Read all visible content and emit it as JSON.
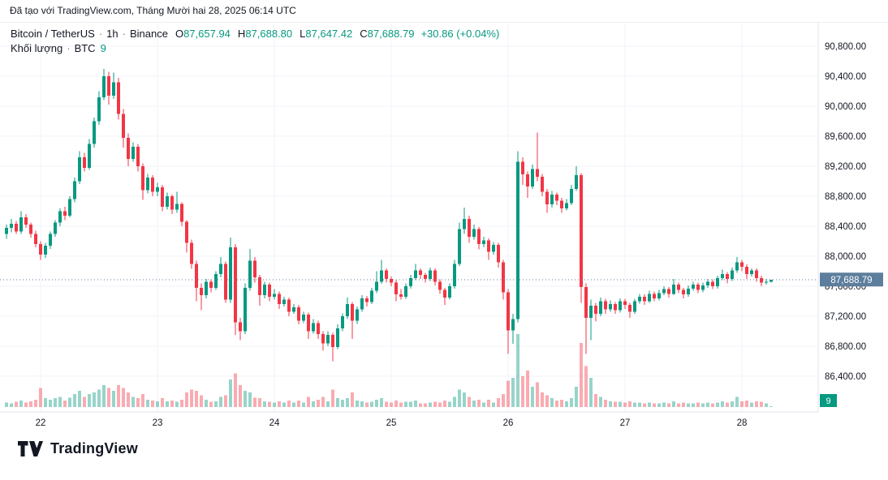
{
  "attribution": "Đã tạo với TradingView.com, Tháng Mười hai 28, 2025 06:14 UTC",
  "legend": {
    "symbol": "Bitcoin / TetherUS",
    "interval": "1h",
    "exchange": "Binance",
    "sep": "·",
    "ohlc": [
      {
        "k": "O",
        "v": "87,657.94"
      },
      {
        "k": "H",
        "v": "87,688.80"
      },
      {
        "k": "L",
        "v": "87,647.42"
      },
      {
        "k": "C",
        "v": "87,688.79"
      }
    ],
    "change": "+30.86 (+0.04%)",
    "volume_label": "Khối lượng",
    "volume_currency": "BTC",
    "volume_value": "9"
  },
  "price_axis": {
    "last_price_label": "87,688.79",
    "volume_badge": "9"
  },
  "footer": {
    "brand": "TradingView"
  },
  "colors": {
    "up": "#089981",
    "down": "#F23645",
    "grid": "#F0F3FA",
    "axis_line": "#E0E3EB",
    "axis_text": "#131722",
    "text": "#131722",
    "price_line": "#5D7E9C",
    "price_label_bg": "#5D7E9C",
    "volume_label_bg": "#089981",
    "background": "#FFFFFF"
  },
  "chart_data": {
    "type": "candlestick",
    "title": "Bitcoin / TetherUS · 1h · Binance",
    "interval": "1h",
    "exchange": "Binance",
    "last_price": 87688.79,
    "last_candle": {
      "open": 87657.94,
      "high": 87688.8,
      "low": 87647.42,
      "close": 87688.79,
      "change": 30.86,
      "change_pct": 0.04,
      "volume_btc": 9
    },
    "y_ticks": [
      {
        "value": 90800,
        "label": "90,800.00"
      },
      {
        "value": 90400,
        "label": "90,400.00"
      },
      {
        "value": 90000,
        "label": "90,000.00"
      },
      {
        "value": 89600,
        "label": "89,600.00"
      },
      {
        "value": 89200,
        "label": "89,200.00"
      },
      {
        "value": 88800,
        "label": "88,800.00"
      },
      {
        "value": 88400,
        "label": "88,400.00"
      },
      {
        "value": 88000,
        "label": "88,000.00"
      },
      {
        "value": 87600,
        "label": "87,600.00"
      },
      {
        "value": 87200,
        "label": "87,200.00"
      },
      {
        "value": 86800,
        "label": "86,800.00"
      },
      {
        "value": 86400,
        "label": "86,400.00"
      }
    ],
    "day_ticks": [
      {
        "index": 7,
        "label": "22"
      },
      {
        "index": 31,
        "label": "23"
      },
      {
        "index": 55,
        "label": "24"
      },
      {
        "index": 79,
        "label": "25"
      },
      {
        "index": 103,
        "label": "26"
      },
      {
        "index": 127,
        "label": "27"
      },
      {
        "index": 151,
        "label": "28"
      }
    ],
    "volume_unit": "relative (max spike = 100)",
    "candles_format": [
      "open",
      "high",
      "low",
      "close",
      "volume_rel"
    ],
    "candles": [
      [
        88300,
        88420,
        88230,
        88380,
        6
      ],
      [
        88380,
        88500,
        88320,
        88430,
        5
      ],
      [
        88430,
        88470,
        88300,
        88330,
        7
      ],
      [
        88330,
        88600,
        88300,
        88520,
        9
      ],
      [
        88520,
        88560,
        88380,
        88420,
        6
      ],
      [
        88420,
        88450,
        88250,
        88300,
        8
      ],
      [
        88300,
        88340,
        88120,
        88160,
        10
      ],
      [
        88160,
        88200,
        87950,
        88020,
        26
      ],
      [
        88020,
        88180,
        87980,
        88140,
        12
      ],
      [
        88140,
        88330,
        88100,
        88300,
        10
      ],
      [
        88300,
        88480,
        88260,
        88450,
        12
      ],
      [
        88450,
        88640,
        88400,
        88600,
        14
      ],
      [
        88600,
        88660,
        88480,
        88540,
        9
      ],
      [
        88540,
        88800,
        88520,
        88760,
        13
      ],
      [
        88760,
        89050,
        88720,
        89000,
        18
      ],
      [
        89000,
        89400,
        88960,
        89320,
        22
      ],
      [
        89320,
        89380,
        89130,
        89180,
        14
      ],
      [
        89180,
        89560,
        89150,
        89500,
        18
      ],
      [
        89500,
        89850,
        89450,
        89800,
        20
      ],
      [
        89800,
        90200,
        89750,
        90120,
        24
      ],
      [
        90120,
        90500,
        90080,
        90400,
        30
      ],
      [
        90400,
        90460,
        90020,
        90140,
        26
      ],
      [
        90140,
        90450,
        90100,
        90320,
        22
      ],
      [
        90320,
        90380,
        89820,
        89900,
        30
      ],
      [
        89900,
        89960,
        89450,
        89580,
        26
      ],
      [
        89580,
        89640,
        89200,
        89300,
        20
      ],
      [
        89300,
        89520,
        89260,
        89460,
        14
      ],
      [
        89460,
        89500,
        89130,
        89200,
        12
      ],
      [
        89200,
        89240,
        88750,
        88880,
        18
      ],
      [
        88880,
        89100,
        88840,
        89050,
        10
      ],
      [
        89050,
        89080,
        88800,
        88860,
        9
      ],
      [
        88860,
        88980,
        88800,
        88920,
        8
      ],
      [
        88920,
        88950,
        88600,
        88660,
        12
      ],
      [
        88660,
        88850,
        88620,
        88800,
        8
      ],
      [
        88800,
        88820,
        88560,
        88620,
        9
      ],
      [
        88620,
        88860,
        88580,
        88700,
        7
      ],
      [
        88700,
        88720,
        88400,
        88460,
        10
      ],
      [
        88460,
        88480,
        88050,
        88180,
        20
      ],
      [
        88180,
        88220,
        87830,
        87900,
        24
      ],
      [
        87900,
        87940,
        87400,
        87580,
        22
      ],
      [
        87580,
        87640,
        87280,
        87480,
        16
      ],
      [
        87480,
        87700,
        87440,
        87660,
        10
      ],
      [
        87660,
        87690,
        87520,
        87580,
        7
      ],
      [
        87580,
        87800,
        87550,
        87760,
        8
      ],
      [
        87760,
        87990,
        87720,
        87900,
        14
      ],
      [
        87900,
        87930,
        87380,
        87420,
        16
      ],
      [
        87420,
        88250,
        87380,
        88120,
        38
      ],
      [
        88120,
        88160,
        86950,
        87120,
        46
      ],
      [
        87120,
        87180,
        86880,
        87000,
        30
      ],
      [
        87000,
        87640,
        86960,
        87580,
        22
      ],
      [
        87580,
        88100,
        87540,
        87940,
        20
      ],
      [
        87940,
        87990,
        87650,
        87720,
        13
      ],
      [
        87720,
        87750,
        87340,
        87480,
        12
      ],
      [
        87480,
        87660,
        87440,
        87620,
        8
      ],
      [
        87620,
        87650,
        87400,
        87460,
        7
      ],
      [
        87460,
        87560,
        87420,
        87500,
        6
      ],
      [
        87500,
        87530,
        87300,
        87360,
        8
      ],
      [
        87360,
        87460,
        87330,
        87420,
        6
      ],
      [
        87420,
        87450,
        87200,
        87260,
        9
      ],
      [
        87260,
        87360,
        87230,
        87320,
        6
      ],
      [
        87320,
        87350,
        87090,
        87140,
        9
      ],
      [
        87140,
        87260,
        87110,
        87220,
        6
      ],
      [
        87220,
        87250,
        86900,
        87000,
        14
      ],
      [
        87000,
        87160,
        86970,
        87110,
        8
      ],
      [
        87110,
        87140,
        86900,
        86960,
        10
      ],
      [
        86960,
        87000,
        86740,
        86840,
        14
      ],
      [
        86840,
        87000,
        86800,
        86950,
        8
      ],
      [
        86950,
        86980,
        86600,
        86790,
        24
      ],
      [
        86790,
        87090,
        86760,
        87040,
        12
      ],
      [
        87040,
        87240,
        87000,
        87200,
        10
      ],
      [
        87200,
        87450,
        87160,
        87360,
        12
      ],
      [
        87360,
        87390,
        86900,
        87140,
        20
      ],
      [
        87140,
        87330,
        87100,
        87290,
        9
      ],
      [
        87290,
        87480,
        87260,
        87440,
        8
      ],
      [
        87440,
        87470,
        87330,
        87390,
        6
      ],
      [
        87390,
        87580,
        87360,
        87540,
        7
      ],
      [
        87540,
        87800,
        87510,
        87660,
        10
      ],
      [
        87660,
        87950,
        87630,
        87810,
        12
      ],
      [
        87810,
        87840,
        87650,
        87700,
        7
      ],
      [
        87700,
        87730,
        87600,
        87650,
        6
      ],
      [
        87650,
        87680,
        87400,
        87490,
        9
      ],
      [
        87490,
        87560,
        87420,
        87460,
        6
      ],
      [
        87460,
        87640,
        87430,
        87600,
        7
      ],
      [
        87600,
        87750,
        87570,
        87710,
        7
      ],
      [
        87710,
        87900,
        87680,
        87810,
        9
      ],
      [
        87810,
        87840,
        87700,
        87750,
        5
      ],
      [
        87750,
        87780,
        87650,
        87700,
        5
      ],
      [
        87700,
        87850,
        87670,
        87810,
        6
      ],
      [
        87810,
        87840,
        87610,
        87660,
        7
      ],
      [
        87660,
        87690,
        87500,
        87550,
        6
      ],
      [
        87550,
        87580,
        87350,
        87450,
        9
      ],
      [
        87450,
        87640,
        87420,
        87600,
        7
      ],
      [
        87600,
        87950,
        87570,
        87900,
        14
      ],
      [
        87900,
        88450,
        87870,
        88360,
        24
      ],
      [
        88360,
        88650,
        88300,
        88500,
        20
      ],
      [
        88500,
        88540,
        88180,
        88260,
        14
      ],
      [
        88260,
        88420,
        88220,
        88360,
        9
      ],
      [
        88360,
        88390,
        88090,
        88160,
        10
      ],
      [
        88160,
        88260,
        88120,
        88210,
        6
      ],
      [
        88210,
        88240,
        87950,
        88060,
        10
      ],
      [
        88060,
        88190,
        88020,
        88150,
        6
      ],
      [
        88150,
        88180,
        87850,
        87920,
        12
      ],
      [
        87920,
        87950,
        87420,
        87520,
        18
      ],
      [
        87520,
        87560,
        86700,
        87010,
        36
      ],
      [
        87010,
        87230,
        86830,
        87160,
        40
      ],
      [
        87160,
        89400,
        87120,
        89260,
        100
      ],
      [
        89260,
        89320,
        88950,
        89090,
        42
      ],
      [
        89090,
        89130,
        88780,
        88930,
        50
      ],
      [
        88930,
        89220,
        88900,
        89160,
        28
      ],
      [
        89160,
        89650,
        89000,
        89060,
        34
      ],
      [
        89060,
        89100,
        88800,
        88860,
        20
      ],
      [
        88860,
        88900,
        88580,
        88690,
        16
      ],
      [
        88690,
        88870,
        88650,
        88820,
        12
      ],
      [
        88820,
        88850,
        88680,
        88740,
        9
      ],
      [
        88740,
        88780,
        88580,
        88640,
        10
      ],
      [
        88640,
        88760,
        88610,
        88710,
        8
      ],
      [
        88710,
        88950,
        88680,
        88900,
        12
      ],
      [
        88900,
        89200,
        88870,
        89080,
        28
      ],
      [
        89080,
        89110,
        87380,
        87590,
        88
      ],
      [
        87590,
        87640,
        86700,
        87180,
        56
      ],
      [
        87180,
        87420,
        86880,
        87340,
        40
      ],
      [
        87340,
        87380,
        87130,
        87230,
        18
      ],
      [
        87230,
        87450,
        87200,
        87400,
        14
      ],
      [
        87400,
        87430,
        87230,
        87290,
        10
      ],
      [
        87290,
        87410,
        87260,
        87360,
        8
      ],
      [
        87360,
        87390,
        87230,
        87280,
        7
      ],
      [
        87280,
        87440,
        87250,
        87400,
        7
      ],
      [
        87400,
        87430,
        87300,
        87350,
        6
      ],
      [
        87350,
        87380,
        87180,
        87260,
        8
      ],
      [
        87260,
        87430,
        87230,
        87400,
        6
      ],
      [
        87400,
        87500,
        87370,
        87460,
        6
      ],
      [
        87460,
        87490,
        87350,
        87400,
        5
      ],
      [
        87400,
        87540,
        87380,
        87500,
        6
      ],
      [
        87500,
        87530,
        87400,
        87440,
        5
      ],
      [
        87440,
        87550,
        87410,
        87510,
        5
      ],
      [
        87510,
        87600,
        87480,
        87560,
        6
      ],
      [
        87560,
        87590,
        87450,
        87500,
        5
      ],
      [
        87500,
        87700,
        87480,
        87620,
        8
      ],
      [
        87620,
        87650,
        87510,
        87550,
        5
      ],
      [
        87550,
        87580,
        87440,
        87490,
        6
      ],
      [
        87490,
        87610,
        87460,
        87570,
        5
      ],
      [
        87570,
        87660,
        87540,
        87620,
        5
      ],
      [
        87620,
        87650,
        87510,
        87550,
        6
      ],
      [
        87550,
        87650,
        87520,
        87610,
        5
      ],
      [
        87610,
        87700,
        87580,
        87660,
        6
      ],
      [
        87660,
        87690,
        87560,
        87600,
        5
      ],
      [
        87600,
        87740,
        87570,
        87710,
        6
      ],
      [
        87710,
        87820,
        87680,
        87760,
        8
      ],
      [
        87760,
        87790,
        87640,
        87700,
        6
      ],
      [
        87700,
        87850,
        87670,
        87810,
        8
      ],
      [
        87810,
        87990,
        87780,
        87920,
        14
      ],
      [
        87920,
        87950,
        87800,
        87860,
        8
      ],
      [
        87860,
        87890,
        87700,
        87760,
        9
      ],
      [
        87760,
        87840,
        87730,
        87810,
        6
      ],
      [
        87810,
        87840,
        87660,
        87710,
        8
      ],
      [
        87710,
        87740,
        87600,
        87650,
        7
      ],
      [
        87650,
        87700,
        87620,
        87658,
        5
      ],
      [
        87657.94,
        87688.8,
        87647.42,
        87688.79,
        1
      ]
    ]
  }
}
